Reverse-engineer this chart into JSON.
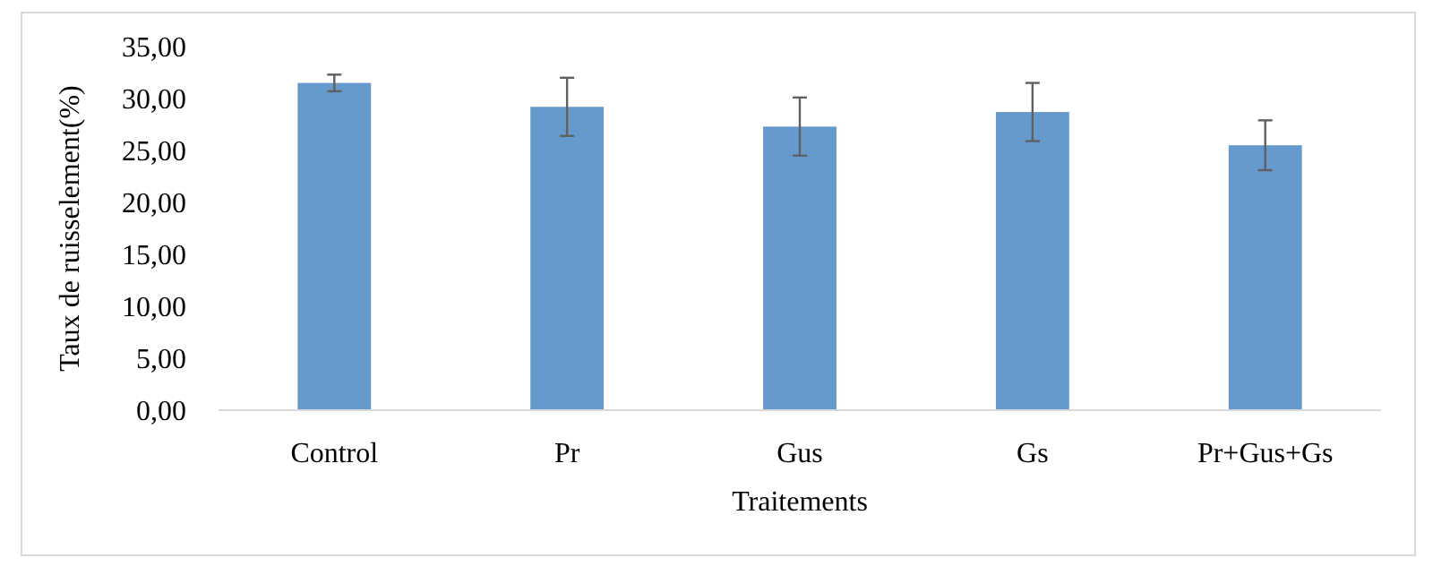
{
  "chart_data": {
    "type": "bar",
    "xlabel": "Traitements",
    "ylabel": "Taux de ruisselement(%)",
    "categories": [
      "Control",
      "Pr",
      "Gus",
      "Gs",
      "Pr+Gus+Gs"
    ],
    "values": [
      31.5,
      29.2,
      27.3,
      28.7,
      25.5
    ],
    "errors": [
      0.8,
      2.8,
      2.8,
      2.8,
      2.4
    ],
    "color": "#6699cc",
    "ylim": [
      0,
      35
    ],
    "yticks": [
      {
        "value": 0,
        "label": "0,00"
      },
      {
        "value": 5,
        "label": "5,00"
      },
      {
        "value": 10,
        "label": "10,00"
      },
      {
        "value": 15,
        "label": "15,00"
      },
      {
        "value": 20,
        "label": "20,00"
      },
      {
        "value": 25,
        "label": "25,00"
      },
      {
        "value": 30,
        "label": "30,00"
      },
      {
        "value": 35,
        "label": "35,00"
      }
    ],
    "grid": false
  }
}
